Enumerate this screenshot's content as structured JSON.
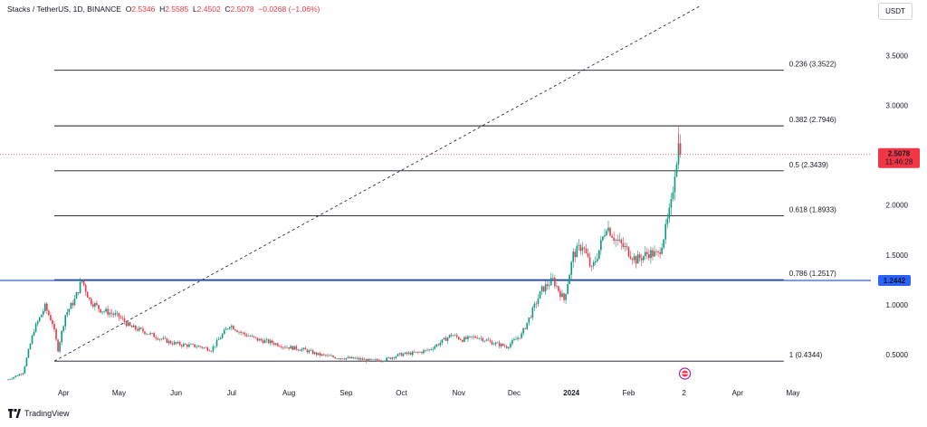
{
  "header": {
    "symbol": "Stacks / TetherUS, 1D, BINANCE",
    "o_label": "O",
    "o_value": "2.5346",
    "h_label": "H",
    "h_value": "2.5585",
    "l_label": "L",
    "l_value": "2.4502",
    "c_label": "C",
    "c_value": "2.5078",
    "change": "−0.0268 (−1.06%)"
  },
  "currency": "USDT",
  "branding": "TradingView",
  "price_badge": {
    "price": "2.5078",
    "countdown": "11:46:28",
    "color": "#f23645"
  },
  "level_badge": {
    "price": "1.2442",
    "color": "#2962ff"
  },
  "colors": {
    "up": "#089981",
    "down": "#f23645",
    "fib": "#131722",
    "hline": "#2962ff",
    "trend": "#131722"
  },
  "chart_data": {
    "type": "candlestick",
    "title": "Stacks / TetherUS, 1D, BINANCE",
    "ylim": [
      0.2,
      4.0
    ],
    "y_ticks": [
      0.5,
      1.0,
      1.5,
      2.0,
      2.5,
      3.0,
      3.5
    ],
    "y_tick_labels": [
      "0.5000",
      "1.0000",
      "1.5000",
      "2.0000",
      "2.5000",
      "3.0000",
      "3.5000"
    ],
    "x_ticks": [
      {
        "label": "Apr",
        "idx": 30
      },
      {
        "label": "May",
        "idx": 60
      },
      {
        "label": "Jun",
        "idx": 91
      },
      {
        "label": "Jul",
        "idx": 121
      },
      {
        "label": "Aug",
        "idx": 152
      },
      {
        "label": "Sep",
        "idx": 183
      },
      {
        "label": "Oct",
        "idx": 213
      },
      {
        "label": "Nov",
        "idx": 244
      },
      {
        "label": "Dec",
        "idx": 274
      },
      {
        "label": "2024",
        "idx": 305
      },
      {
        "label": "Feb",
        "idx": 336
      },
      {
        "label": "2",
        "idx": 366
      },
      {
        "label": "Apr",
        "idx": 395
      },
      {
        "label": "May",
        "idx": 425
      }
    ],
    "fib_levels": [
      {
        "ratio": "0.236",
        "price": 3.3522,
        "label": "0.236 (3.3522)"
      },
      {
        "ratio": "0.382",
        "price": 2.7946,
        "label": "0.382 (2.7946)"
      },
      {
        "ratio": "0.5",
        "price": 2.3439,
        "label": "0.5 (2.3439)"
      },
      {
        "ratio": "0.618",
        "price": 1.8933,
        "label": "0.618 (1.8933)"
      },
      {
        "ratio": "0.786",
        "price": 1.2517,
        "label": "0.786 (1.2517)"
      },
      {
        "ratio": "1",
        "price": 0.4344,
        "label": "1 (0.4344)"
      }
    ],
    "fib_range_idx": [
      25,
      420
    ],
    "horizontal_level": 1.2442,
    "last_price": 2.5078,
    "trendline": {
      "from": {
        "idx": 25,
        "price": 0.4344
      },
      "to": {
        "idx": 375,
        "price": 4.0
      }
    },
    "anchors": [
      [
        0,
        0.25
      ],
      [
        8,
        0.32
      ],
      [
        14,
        0.75
      ],
      [
        20,
        0.98
      ],
      [
        24,
        0.82
      ],
      [
        27,
        0.55
      ],
      [
        31,
        0.9
      ],
      [
        36,
        1.05
      ],
      [
        40,
        1.25
      ],
      [
        44,
        1.05
      ],
      [
        50,
        0.95
      ],
      [
        55,
        0.92
      ],
      [
        60,
        0.88
      ],
      [
        66,
        0.78
      ],
      [
        74,
        0.73
      ],
      [
        80,
        0.68
      ],
      [
        88,
        0.62
      ],
      [
        94,
        0.6
      ],
      [
        104,
        0.58
      ],
      [
        110,
        0.55
      ],
      [
        120,
        0.8
      ],
      [
        126,
        0.72
      ],
      [
        135,
        0.65
      ],
      [
        143,
        0.62
      ],
      [
        150,
        0.58
      ],
      [
        160,
        0.55
      ],
      [
        168,
        0.5
      ],
      [
        178,
        0.47
      ],
      [
        188,
        0.46
      ],
      [
        196,
        0.44
      ],
      [
        204,
        0.45
      ],
      [
        212,
        0.5
      ],
      [
        222,
        0.52
      ],
      [
        228,
        0.55
      ],
      [
        234,
        0.62
      ],
      [
        240,
        0.7
      ],
      [
        246,
        0.65
      ],
      [
        254,
        0.68
      ],
      [
        262,
        0.62
      ],
      [
        270,
        0.58
      ],
      [
        278,
        0.7
      ],
      [
        283,
        0.9
      ],
      [
        289,
        1.15
      ],
      [
        295,
        1.25
      ],
      [
        301,
        1.05
      ],
      [
        306,
        1.5
      ],
      [
        311,
        1.6
      ],
      [
        316,
        1.35
      ],
      [
        320,
        1.55
      ],
      [
        324,
        1.8
      ],
      [
        329,
        1.65
      ],
      [
        335,
        1.55
      ],
      [
        340,
        1.45
      ],
      [
        347,
        1.52
      ],
      [
        352,
        1.5
      ],
      [
        356,
        1.75
      ],
      [
        359,
        2.0
      ],
      [
        361,
        2.35
      ],
      [
        363,
        2.6
      ],
      [
        364,
        2.52
      ]
    ],
    "last_idx": 364
  }
}
